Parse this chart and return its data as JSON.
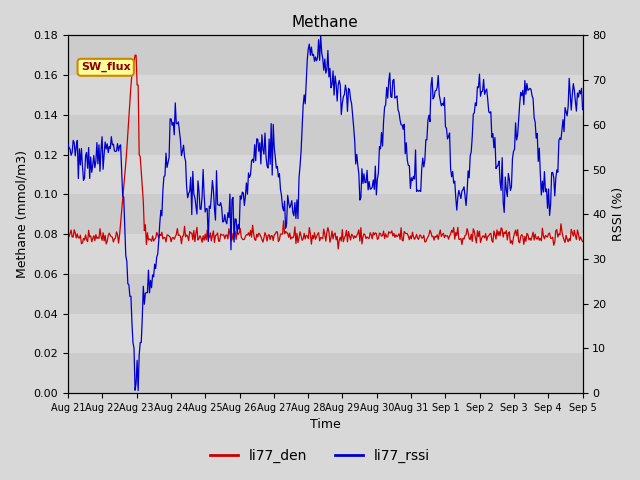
{
  "title": "Methane",
  "ylabel_left": "Methane (mmol/m3)",
  "ylabel_right": "RSSI (%)",
  "xlabel": "Time",
  "ylim_left": [
    0.0,
    0.18
  ],
  "ylim_right": [
    0,
    80
  ],
  "yticks_left": [
    0.0,
    0.02,
    0.04,
    0.06,
    0.08,
    0.1,
    0.12,
    0.14,
    0.16,
    0.18
  ],
  "yticks_right": [
    0,
    10,
    20,
    30,
    40,
    50,
    60,
    70,
    80
  ],
  "bg_color": "#d8d8d8",
  "band_color": "#c8c8c8",
  "line_color_red": "#cc0000",
  "line_color_blue": "#0000cc",
  "sw_flux_label": "SW_flux",
  "sw_flux_bg": "#ffff99",
  "sw_flux_border": "#cc8800",
  "legend_labels": [
    "li77_den",
    "li77_rssi"
  ],
  "n_points": 500,
  "xtick_labels": [
    "Aug 21",
    "Aug 22",
    "Aug 23",
    "Aug 24",
    "Aug 25",
    "Aug 26",
    "Aug 27",
    "Aug 28",
    "Aug 29",
    "Aug 30",
    "Aug 31",
    "Sep 1",
    "Sep 2",
    "Sep 3",
    "Sep 4",
    "Sep 5"
  ]
}
